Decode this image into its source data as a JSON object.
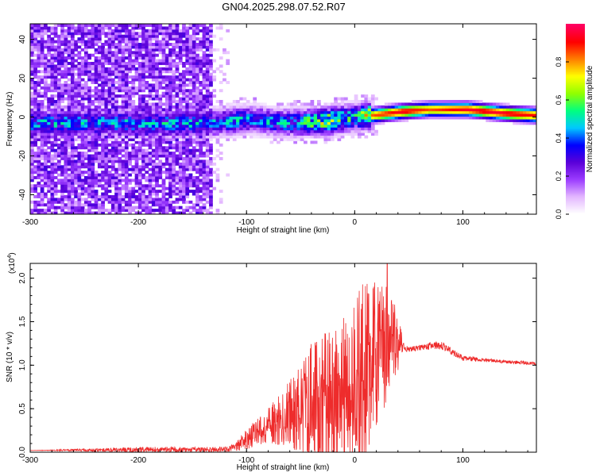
{
  "title": "GN04.2025.298.07.52.R07",
  "chart_data": [
    {
      "type": "heatmap",
      "xlabel": "Height of straight line (km)",
      "ylabel": "Frequency (Hz)",
      "xlim": [
        -300,
        168
      ],
      "ylim": [
        -50,
        48
      ],
      "xticks": [
        -300,
        -200,
        -100,
        0,
        100
      ],
      "xtick_labels": [
        "-300",
        "-200",
        "-100",
        "0",
        "100"
      ],
      "yticks": [
        -40,
        -20,
        0,
        20,
        40
      ],
      "ytick_labels": [
        "-40",
        "-20",
        "0",
        "20",
        "40"
      ],
      "noise_region_x": [
        -300,
        -130
      ],
      "signal_track": [
        {
          "x": -130,
          "freq": -3,
          "amp": 0.45
        },
        {
          "x": -100,
          "freq": -1,
          "amp": 0.45
        },
        {
          "x": -60,
          "freq": -3,
          "amp": 0.45
        },
        {
          "x": -25,
          "freq": -2,
          "amp": 0.7
        },
        {
          "x": 0,
          "freq": 0,
          "amp": 0.5
        },
        {
          "x": 17,
          "freq": 1,
          "amp": 0.85
        },
        {
          "x": 45,
          "freq": 3,
          "amp": 0.95
        },
        {
          "x": 70,
          "freq": 4,
          "amp": 0.85
        },
        {
          "x": 105,
          "freq": 4,
          "amp": 0.95
        },
        {
          "x": 140,
          "freq": 2,
          "amp": 0.95
        },
        {
          "x": 168,
          "freq": 1,
          "amp": 0.9
        }
      ],
      "colorbar": {
        "label": "Normalized spectral amplitude",
        "ticks": [
          0.0,
          0.2,
          0.4,
          0.6,
          0.8
        ],
        "tick_labels": [
          "0.0",
          "0.2",
          "0.4",
          "0.6",
          "0.8"
        ],
        "range": [
          0,
          1
        ],
        "colors": [
          "#ffffff",
          "#e3b6ff",
          "#9b3cff",
          "#5a00d8",
          "#0000ff",
          "#00c8ff",
          "#00ff80",
          "#90ff00",
          "#ffff00",
          "#ff8000",
          "#ff0000",
          "#ff0060"
        ]
      }
    },
    {
      "type": "line",
      "xlabel": "Height of straight line (km)",
      "ylabel": "SNR (10 * v/v)",
      "y_scale_label": "(x10",
      "y_scale_exp": "4",
      "y_scale_close": ")",
      "xlim": [
        -300,
        168
      ],
      "ylim": [
        0,
        2.17
      ],
      "xticks": [
        -300,
        -200,
        -100,
        0,
        100
      ],
      "xtick_labels": [
        "-300",
        "-200",
        "-100",
        "0",
        "100"
      ],
      "yticks": [
        0.0,
        0.5,
        1.0,
        1.5,
        2.0
      ],
      "ytick_labels": [
        "0.0",
        "0.5",
        "1.0",
        "1.5",
        "2.0"
      ],
      "color": "#ee2c2c",
      "series": [
        {
          "name": "SNR",
          "x": [
            -300,
            -200,
            -120,
            -110,
            -100,
            -80,
            -60,
            -40,
            -20,
            -10,
            0,
            10,
            20,
            30,
            40,
            45,
            50,
            60,
            70,
            80,
            90,
            100,
            120,
            140,
            168
          ],
          "y": [
            0.02,
            0.03,
            0.03,
            0.06,
            0.15,
            0.3,
            0.45,
            0.55,
            0.55,
            0.7,
            0.75,
            0.95,
            1.15,
            1.3,
            1.25,
            1.2,
            1.18,
            1.2,
            1.22,
            1.23,
            1.15,
            1.08,
            1.06,
            1.04,
            1.02
          ],
          "envelope": [
            0.0,
            0.03,
            0.03,
            0.05,
            0.12,
            0.2,
            0.4,
            0.7,
            0.9,
            0.9,
            1.0,
            1.05,
            0.85,
            0.75,
            0.35,
            0.06,
            0.03,
            0.03,
            0.04,
            0.05,
            0.04,
            0.03,
            0.02,
            0.02,
            0.02
          ]
        }
      ],
      "peak": {
        "x": 30,
        "y": 2.17
      }
    }
  ]
}
